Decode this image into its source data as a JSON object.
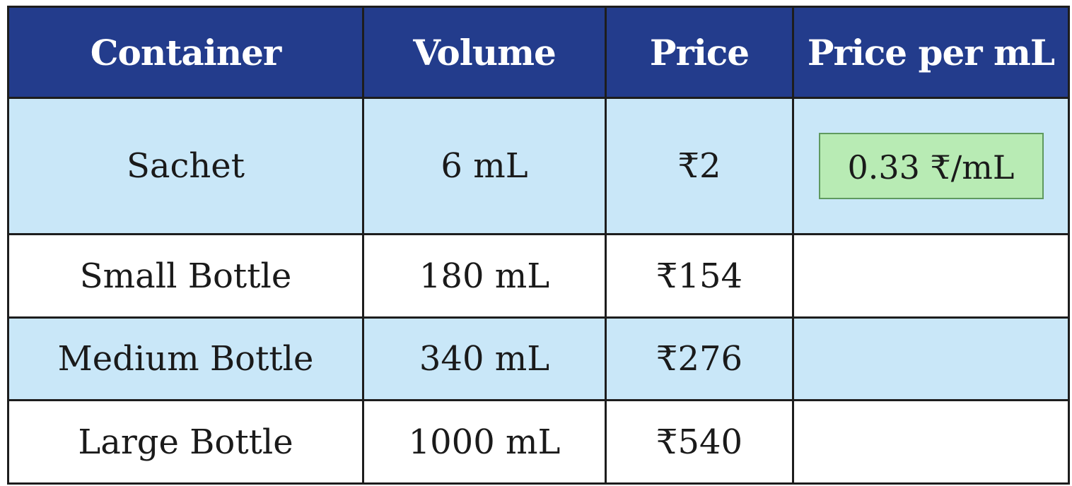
{
  "table": {
    "header": [
      "Container",
      "Volume",
      "Price",
      "Price per mL"
    ],
    "rows": [
      [
        "Sachet",
        "6 mL",
        "₹2",
        "0.33 ₹/mL"
      ],
      [
        "Small Bottle",
        "180 mL",
        "₹154"
      ],
      [
        "Medium Bottle",
        "340 mL",
        "₹276"
      ],
      [
        "Large Bottle",
        "1000 mL",
        "₹540"
      ]
    ]
  }
}
